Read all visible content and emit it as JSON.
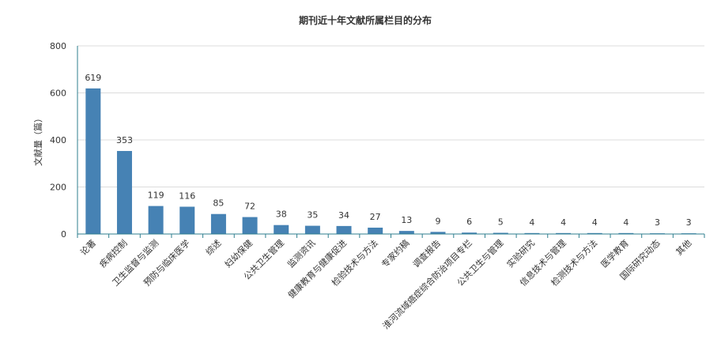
{
  "chart_data": {
    "type": "bar",
    "title": "期刊近十年文献所属栏目的分布",
    "xlabel": "",
    "ylabel": "文献量（篇）",
    "ylim": [
      0,
      800
    ],
    "yticks": [
      0,
      200,
      400,
      600,
      800
    ],
    "grid": true,
    "categories": [
      "论著",
      "疾病控制",
      "卫生监督与监测",
      "预防与临床医学",
      "综述",
      "妇幼保健",
      "公共卫生管理",
      "监测资讯",
      "健康教育与健康促进",
      "检验技术与方法",
      "专家约稿",
      "调查报告",
      "淮河流域癌症综合防治项目专栏",
      "公共卫生与管理",
      "实验研究",
      "信息技术与管理",
      "检测技术与方法",
      "医学教育",
      "国际研究动态",
      "其他"
    ],
    "values": [
      619,
      353,
      119,
      116,
      85,
      72,
      38,
      35,
      34,
      27,
      13,
      9,
      6,
      5,
      4,
      4,
      4,
      4,
      3,
      3
    ],
    "bar_color": "#4682b4"
  }
}
